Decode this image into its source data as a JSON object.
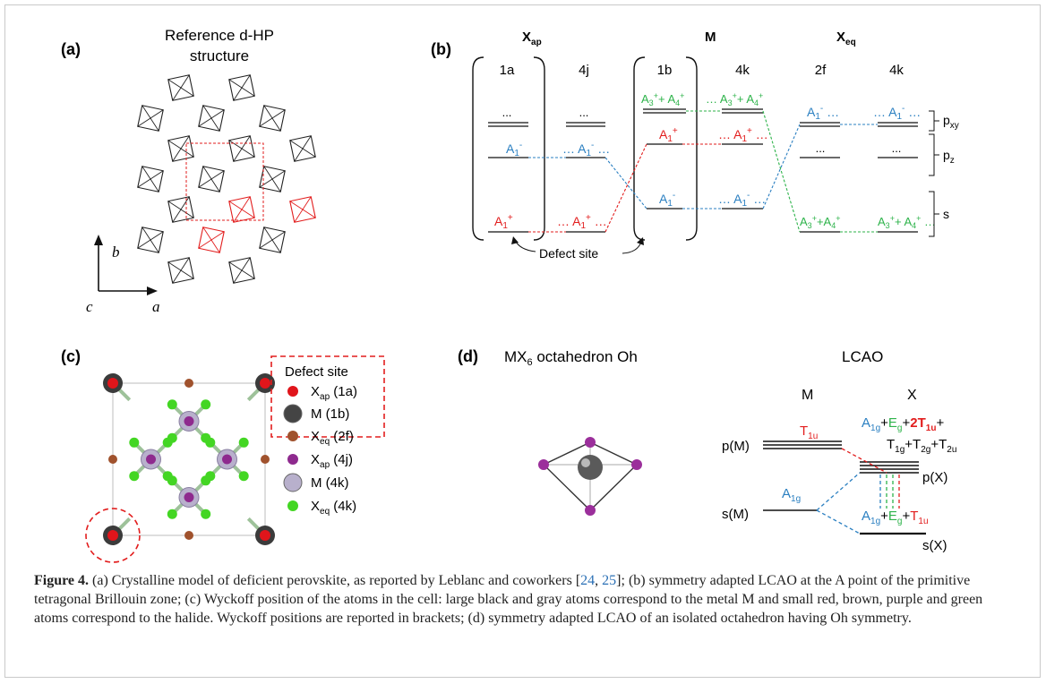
{
  "panels": {
    "a": {
      "label": "(a)",
      "title": [
        "Reference d-HP",
        "structure"
      ],
      "axes": {
        "b": "b",
        "a": "a",
        "c": "c"
      }
    },
    "b": {
      "label": "(b)",
      "group_headers": {
        "x_ap": "X",
        "x_ap_sub": "ap",
        "m": "M",
        "x_eq": "X",
        "x_eq_sub": "eq"
      },
      "columns": [
        "1a",
        "4j",
        "1b",
        "4k",
        "2f",
        "4k"
      ],
      "dots": "...",
      "levels": {
        "a1_minus": "A1-",
        "a1_plus": "A1+",
        "a3a4": "A3+ + A4+"
      },
      "orbital_labels": {
        "pxy": "pxy",
        "pz": "pz",
        "s": "s"
      },
      "defect_label": "Defect site"
    },
    "c": {
      "label": "(c)",
      "legend_title": "Defect site",
      "legend": [
        {
          "name": "X",
          "sub": "ap",
          "site": "(1a)",
          "color": "#e0151b"
        },
        {
          "name": "M",
          "sub": "",
          "site": "(1b)",
          "color": "#444444"
        },
        {
          "name": "X",
          "sub": "eq",
          "site": "(2f)",
          "color": "#a0522d"
        },
        {
          "name": "X",
          "sub": "ap",
          "site": "(4j)",
          "color": "#8e2a8e"
        },
        {
          "name": "M",
          "sub": "",
          "site": "(4k)",
          "color": "#b8b0cc"
        },
        {
          "name": "X",
          "sub": "eq",
          "site": "(4k)",
          "color": "#43d623"
        }
      ]
    },
    "d": {
      "label": "(d)",
      "octahedron_title": "MX",
      "octahedron_title_sub": "6",
      "octahedron_title_rest": " octahedron Oh",
      "lcao_title": "LCAO",
      "m_header": "M",
      "x_header": "X",
      "pm": "p(M)",
      "sm": "s(M)",
      "px": "p(X)",
      "sx": "s(X)",
      "t1u": "T1u",
      "a1g": "A1g",
      "top_x_line1": "A1g+Eg+2T1u+",
      "top_x_line2": "T1g+T2g+T2u",
      "bottom_x": "A1g+Eg+T1u"
    }
  },
  "caption": {
    "figure_label": "Figure 4.",
    "part1": " (a) Crystalline model of deficient perovskite, as reported by Leblanc and coworkers [",
    "ref1": "24",
    "sep": ", ",
    "ref2": "25",
    "part2": "]; (b) symmetry adapted LCAO at the A point of the primitive tetragonal Brillouin zone; (c) Wyckoff position of the atoms in the cell: large black and gray atoms correspond to the metal M and small red, brown, purple and green atoms correspond to the halide. Wyckoff positions are reported in brackets; (d) symmetry adapted LCAO of an isolated octahedron having Oh symmetry."
  },
  "colors": {
    "blue": "#2a7fc1",
    "red": "#e21d1d",
    "green": "#2db34a",
    "black": "#111111"
  }
}
